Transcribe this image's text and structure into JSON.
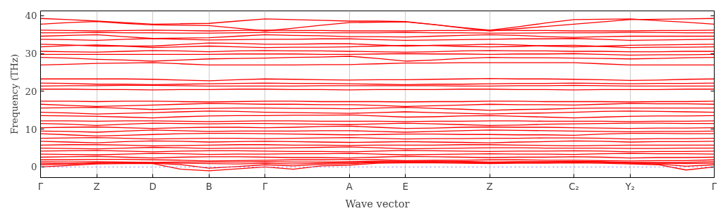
{
  "chart_data": {
    "type": "line",
    "xlabel": "Wave vector",
    "ylabel": "Frequency (THz)",
    "categories": [
      "Γ",
      null,
      "Z",
      null,
      "D",
      null,
      "B",
      null,
      "Γ",
      null,
      null,
      "A",
      null,
      "E",
      null,
      null,
      "Z",
      null,
      null,
      "C₂",
      null,
      "Y₂",
      null,
      null,
      "Γ"
    ],
    "ylim": [
      -2.8,
      41.3
    ],
    "yticks": [
      0,
      10,
      20,
      30,
      40
    ],
    "grid": "x",
    "line_style": "solid",
    "marker": "none",
    "ref_lines": [
      {
        "axis": "y",
        "value": 0,
        "color": "#8080ff",
        "line_style": "dotted"
      }
    ],
    "series": [
      {
        "color": "#ff0000",
        "values": [
          39.3,
          39.0,
          38.6,
          38.2,
          37.8,
          37.9,
          38.0,
          38.6,
          39.2,
          39.0,
          38.8,
          38.6,
          38.6,
          38.5,
          37.7,
          36.8,
          36.0,
          36.6,
          37.2,
          37.8,
          38.4,
          39.0,
          39.1,
          39.2,
          39.3
        ]
      },
      {
        "color": "#ff0000",
        "values": [
          37.8,
          38.2,
          38.5,
          38.0,
          37.6,
          37.5,
          37.4,
          36.7,
          36.0,
          36.7,
          37.5,
          38.2,
          38.3,
          38.4,
          37.7,
          36.9,
          36.2,
          37.1,
          38.1,
          39.0,
          39.1,
          39.2,
          38.7,
          38.3,
          37.8
        ]
      },
      {
        "color": "#ff0000",
        "values": [
          36.2,
          36.1,
          36.0,
          36.1,
          36.2,
          36.1,
          36.0,
          36.1,
          36.2,
          36.1,
          36.1,
          36.0,
          36.0,
          36.0,
          36.1,
          36.1,
          36.2,
          36.1,
          36.1,
          36.0,
          36.0,
          36.0,
          36.1,
          36.1,
          36.2
        ]
      },
      {
        "color": "#ff0000",
        "values": [
          35.5,
          35.5,
          35.6,
          35.5,
          35.5,
          35.4,
          35.4,
          35.5,
          35.6,
          35.6,
          35.5,
          35.5,
          35.5,
          35.6,
          35.5,
          35.5,
          35.4,
          35.4,
          35.5,
          35.5,
          35.5,
          35.6,
          35.6,
          35.5,
          35.5
        ]
      },
      {
        "color": "#ff0000",
        "values": [
          34.6,
          34.8,
          35.0,
          34.5,
          34.0,
          34.1,
          34.2,
          34.6,
          35.0,
          34.8,
          34.7,
          34.5,
          34.5,
          34.4,
          34.6,
          34.8,
          35.0,
          34.8,
          34.5,
          34.3,
          34.5,
          34.6,
          34.6,
          34.6,
          34.6
        ]
      },
      {
        "color": "#ff0000",
        "values": [
          33.8,
          33.7,
          33.5,
          33.8,
          34.0,
          33.8,
          33.6,
          33.7,
          33.8,
          33.8,
          33.9,
          33.9,
          33.7,
          33.5,
          33.6,
          33.7,
          33.8,
          33.9,
          33.9,
          34.0,
          33.8,
          33.5,
          33.6,
          33.7,
          33.8
        ]
      },
      {
        "color": "#ff0000",
        "values": [
          32.5,
          32.3,
          32.0,
          32.0,
          32.0,
          32.4,
          32.8,
          32.7,
          32.5,
          32.5,
          32.6,
          32.6,
          32.3,
          32.0,
          32.2,
          32.3,
          32.5,
          32.3,
          32.0,
          31.8,
          32.0,
          32.2,
          32.3,
          32.4,
          32.5
        ]
      },
      {
        "color": "#ff0000",
        "values": [
          31.8,
          32.1,
          32.3,
          32.0,
          31.6,
          31.8,
          32.0,
          31.8,
          31.6,
          31.7,
          31.7,
          31.8,
          32.0,
          32.2,
          32.1,
          31.9,
          31.8,
          31.9,
          32.1,
          32.2,
          31.9,
          31.6,
          31.7,
          31.7,
          31.8
        ]
      },
      {
        "color": "#ff0000",
        "values": [
          30.6,
          30.5,
          30.4,
          30.6,
          30.8,
          30.7,
          30.5,
          30.7,
          30.8,
          30.7,
          30.7,
          30.6,
          30.5,
          30.4,
          30.5,
          30.7,
          30.8,
          30.7,
          30.7,
          30.6,
          30.6,
          30.5,
          30.5,
          30.6,
          30.6
        ]
      },
      {
        "color": "#ff0000",
        "values": [
          29.8,
          29.8,
          29.8,
          29.8,
          29.8,
          29.8,
          29.8,
          29.9,
          29.9,
          29.9,
          29.8,
          29.8,
          29.9,
          30.0,
          29.9,
          29.9,
          29.8,
          29.9,
          29.9,
          30.0,
          29.8,
          29.6,
          29.7,
          29.7,
          29.8
        ]
      },
      {
        "color": "#ff0000",
        "values": [
          29.0,
          28.8,
          28.5,
          28.3,
          28.0,
          28.3,
          28.6,
          28.7,
          28.8,
          29.0,
          29.1,
          29.3,
          28.7,
          28.0,
          28.3,
          28.7,
          29.0,
          28.9,
          28.9,
          28.8,
          28.7,
          28.6,
          28.7,
          28.9,
          29.0
        ]
      },
      {
        "color": "#ff0000",
        "values": [
          27.0,
          27.2,
          27.4,
          27.5,
          27.6,
          27.3,
          27.0,
          27.0,
          27.0,
          27.0,
          27.1,
          27.1,
          27.3,
          27.5,
          27.5,
          27.6,
          27.6,
          27.6,
          27.6,
          27.6,
          27.3,
          27.0,
          27.0,
          27.0,
          27.0
        ]
      },
      {
        "color": "#ff0000",
        "values": [
          23.3,
          23.3,
          23.3,
          23.3,
          23.2,
          23.0,
          22.8,
          23.1,
          23.3,
          23.2,
          23.1,
          23.0,
          23.1,
          23.1,
          23.2,
          23.3,
          23.4,
          23.3,
          23.3,
          23.2,
          23.1,
          22.9,
          23.0,
          23.2,
          23.3
        ]
      },
      {
        "color": "#ff0000",
        "values": [
          22.2,
          22.1,
          21.9,
          21.9,
          21.8,
          21.9,
          22.0,
          22.1,
          22.2,
          22.1,
          22.1,
          22.0,
          21.9,
          21.8,
          21.9,
          21.9,
          22.0,
          22.1,
          22.1,
          22.2,
          22.1,
          22.0,
          22.1,
          22.1,
          22.2
        ]
      },
      {
        "color": "#ff0000",
        "values": [
          21.4,
          21.5,
          21.5,
          21.6,
          21.6,
          21.5,
          21.4,
          21.4,
          21.4,
          21.4,
          21.5,
          21.5,
          21.5,
          21.5,
          21.5,
          21.4,
          21.4,
          21.5,
          21.5,
          21.6,
          21.5,
          21.4,
          21.4,
          21.4,
          21.4
        ]
      },
      {
        "color": "#ff0000",
        "values": [
          20.6,
          20.6,
          20.5,
          20.5,
          20.4,
          20.5,
          20.5,
          20.6,
          20.6,
          20.5,
          20.5,
          20.4,
          20.5,
          20.5,
          20.5,
          20.6,
          20.6,
          20.5,
          20.5,
          20.4,
          20.5,
          20.5,
          20.5,
          20.6,
          20.6
        ]
      },
      {
        "color": "#ff0000",
        "values": [
          17.4,
          17.4,
          17.3,
          17.4,
          17.4,
          17.3,
          17.2,
          17.3,
          17.4,
          17.4,
          17.3,
          17.3,
          17.3,
          17.2,
          17.3,
          17.3,
          17.4,
          17.4,
          17.3,
          17.3,
          17.3,
          17.2,
          17.3,
          17.3,
          17.4
        ]
      },
      {
        "color": "#ff0000",
        "values": [
          16.6,
          16.3,
          16.0,
          16.2,
          16.4,
          16.6,
          16.8,
          16.7,
          16.6,
          16.6,
          16.5,
          16.5,
          16.3,
          16.0,
          16.2,
          16.4,
          16.6,
          16.5,
          16.5,
          16.4,
          16.6,
          16.8,
          16.7,
          16.7,
          16.6
        ]
      },
      {
        "color": "#ff0000",
        "values": [
          15.6,
          15.7,
          15.8,
          15.5,
          15.2,
          15.4,
          15.5,
          15.6,
          15.6,
          15.5,
          15.5,
          15.4,
          15.6,
          15.8,
          15.5,
          15.3,
          15.0,
          15.2,
          15.3,
          15.5,
          15.6,
          15.6,
          15.6,
          15.6,
          15.6
        ]
      },
      {
        "color": "#ff0000",
        "values": [
          14.5,
          14.3,
          14.0,
          14.2,
          14.4,
          14.6,
          14.8,
          14.7,
          14.5,
          14.4,
          14.3,
          14.2,
          14.4,
          14.6,
          14.4,
          14.2,
          14.0,
          14.2,
          14.3,
          14.5,
          14.7,
          14.8,
          14.7,
          14.6,
          14.5
        ]
      },
      {
        "color": "#ff0000",
        "values": [
          13.6,
          13.5,
          13.4,
          13.2,
          13.0,
          13.3,
          13.5,
          13.6,
          13.6,
          13.7,
          13.7,
          13.8,
          13.5,
          13.2,
          13.3,
          13.5,
          13.6,
          13.4,
          13.2,
          13.0,
          13.2,
          13.4,
          13.5,
          13.5,
          13.6
        ]
      },
      {
        "color": "#ff0000",
        "values": [
          12.2,
          12.2,
          12.1,
          12.2,
          12.2,
          12.1,
          12.0,
          12.1,
          12.2,
          12.2,
          12.1,
          12.1,
          12.1,
          12.0,
          12.1,
          12.1,
          12.2,
          12.2,
          12.1,
          12.1,
          12.1,
          12.0,
          12.1,
          12.1,
          12.2
        ]
      },
      {
        "color": "#ff0000",
        "values": [
          11.5,
          11.3,
          11.0,
          11.3,
          11.6,
          11.5,
          11.4,
          11.5,
          11.5,
          11.4,
          11.3,
          11.2,
          11.4,
          11.6,
          11.4,
          11.2,
          11.0,
          11.1,
          11.3,
          11.4,
          11.5,
          11.6,
          11.6,
          11.5,
          11.5
        ]
      },
      {
        "color": "#ff0000",
        "values": [
          10.4,
          10.5,
          10.6,
          10.4,
          10.2,
          10.4,
          10.5,
          10.5,
          10.4,
          10.5,
          10.7,
          10.8,
          10.5,
          10.2,
          10.3,
          10.5,
          10.6,
          10.5,
          10.5,
          10.4,
          10.3,
          10.2,
          10.3,
          10.3,
          10.4
        ]
      },
      {
        "color": "#ff0000",
        "values": [
          9.5,
          9.4,
          9.2,
          9.5,
          9.8,
          9.6,
          9.4,
          9.5,
          9.5,
          9.5,
          9.6,
          9.6,
          9.4,
          9.2,
          9.4,
          9.6,
          9.8,
          9.7,
          9.6,
          9.5,
          9.4,
          9.3,
          9.4,
          9.4,
          9.5
        ]
      },
      {
        "color": "#ff0000",
        "values": [
          8.8,
          8.5,
          8.2,
          8.4,
          8.6,
          8.8,
          8.9,
          8.9,
          8.8,
          8.7,
          8.6,
          8.5,
          8.6,
          8.7,
          8.7,
          8.6,
          8.6,
          8.5,
          8.5,
          8.4,
          8.7,
          8.9,
          8.9,
          8.8,
          8.8
        ]
      },
      {
        "color": "#ff0000",
        "values": [
          7.6,
          7.7,
          7.8,
          7.6,
          7.4,
          7.5,
          7.6,
          7.6,
          7.5,
          7.6,
          7.7,
          7.8,
          7.6,
          7.4,
          7.5,
          7.5,
          7.6,
          7.6,
          7.7,
          7.7,
          7.6,
          7.4,
          7.5,
          7.5,
          7.6
        ]
      },
      {
        "color": "#ff0000",
        "values": [
          6.8,
          6.6,
          6.4,
          6.7,
          6.9,
          6.8,
          6.6,
          6.7,
          6.8,
          6.7,
          6.6,
          6.5,
          6.6,
          6.7,
          6.6,
          6.5,
          6.4,
          6.6,
          6.7,
          6.9,
          6.8,
          6.6,
          6.7,
          6.7,
          6.8
        ]
      },
      {
        "color": "#ff0000",
        "values": [
          5.8,
          5.9,
          5.9,
          5.8,
          5.6,
          5.7,
          5.8,
          5.9,
          5.9,
          5.8,
          5.8,
          5.7,
          5.8,
          5.8,
          5.8,
          5.9,
          5.9,
          5.8,
          5.7,
          5.6,
          5.7,
          5.8,
          5.8,
          5.8,
          5.8
        ]
      },
      {
        "color": "#ff0000",
        "values": [
          5.0,
          4.9,
          4.8,
          5.0,
          5.2,
          5.1,
          4.9,
          5.0,
          5.0,
          5.1,
          5.2,
          5.3,
          5.1,
          4.8,
          4.9,
          5.0,
          5.1,
          5.1,
          5.0,
          5.0,
          5.0,
          4.9,
          4.9,
          5.0,
          5.0
        ]
      },
      {
        "color": "#ff0000",
        "values": [
          4.2,
          4.3,
          4.4,
          4.2,
          4.0,
          4.2,
          4.3,
          4.3,
          4.2,
          4.1,
          4.1,
          4.0,
          4.2,
          4.4,
          4.3,
          4.2,
          4.1,
          4.2,
          4.2,
          4.3,
          4.2,
          4.0,
          4.1,
          4.1,
          4.2
        ]
      },
      {
        "color": "#ff0000",
        "values": [
          3.4,
          3.3,
          3.2,
          3.4,
          3.6,
          3.5,
          3.3,
          3.4,
          3.4,
          3.5,
          3.5,
          3.6,
          3.4,
          3.2,
          3.3,
          3.4,
          3.5,
          3.4,
          3.4,
          3.3,
          3.5,
          3.6,
          3.5,
          3.5,
          3.4
        ]
      },
      {
        "color": "#ff0000",
        "values": [
          2.6,
          2.7,
          2.8,
          2.6,
          2.4,
          2.6,
          2.7,
          2.7,
          2.6,
          2.5,
          2.5,
          2.4,
          2.6,
          2.8,
          2.7,
          2.6,
          2.5,
          2.6,
          2.6,
          2.7,
          2.6,
          2.4,
          2.5,
          2.5,
          2.6
        ]
      },
      {
        "color": "#ff0000",
        "values": [
          1.9,
          1.9,
          2.0,
          2.0,
          1.9,
          1.8,
          1.6,
          1.7,
          1.8,
          1.9,
          1.9,
          2.0,
          1.9,
          1.7,
          1.8,
          1.8,
          1.9,
          1.9,
          1.8,
          1.8,
          1.7,
          1.6,
          1.7,
          1.7,
          1.9
        ]
      },
      {
        "color": "#ff0000",
        "values": [
          1.4,
          1.3,
          1.4,
          1.3,
          1.2,
          1.3,
          1.3,
          1.3,
          1.4,
          1.3,
          1.3,
          1.4,
          1.5,
          1.6,
          1.6,
          1.5,
          1.3,
          1.4,
          1.4,
          1.5,
          1.4,
          1.2,
          1.2,
          1.2,
          1.4
        ]
      },
      {
        "color": "#ff0000",
        "values": [
          0,
          0.4,
          0.8,
          0.9,
          0.9,
          -0.6,
          -1.0,
          -0.5,
          0,
          -0.6,
          0.3,
          0.5,
          1.0,
          1.1,
          1.1,
          1.0,
          0.9,
          1.0,
          1.0,
          1.1,
          1.0,
          0.8,
          0.6,
          -0.8,
          0
        ]
      },
      {
        "color": "#ff0000",
        "values": [
          0.6,
          0.7,
          1.0,
          1.1,
          1.0,
          0.6,
          -0.3,
          0.1,
          0.6,
          0.3,
          0.7,
          0.9,
          1.2,
          1.3,
          1.3,
          1.2,
          1.1,
          1.2,
          1.2,
          1.3,
          1.2,
          1.0,
          0.8,
          0.2,
          0.6
        ]
      },
      {
        "color": "#ff0000",
        "values": [
          1.0,
          0.9,
          1.1,
          1.2,
          1.1,
          1.0,
          0.9,
          0.8,
          1.0,
          0.8,
          1.0,
          1.2,
          1.3,
          1.4,
          1.4,
          1.3,
          1.2,
          1.3,
          1.3,
          1.4,
          1.3,
          1.1,
          1.0,
          0.9,
          1.0
        ]
      }
    ]
  }
}
